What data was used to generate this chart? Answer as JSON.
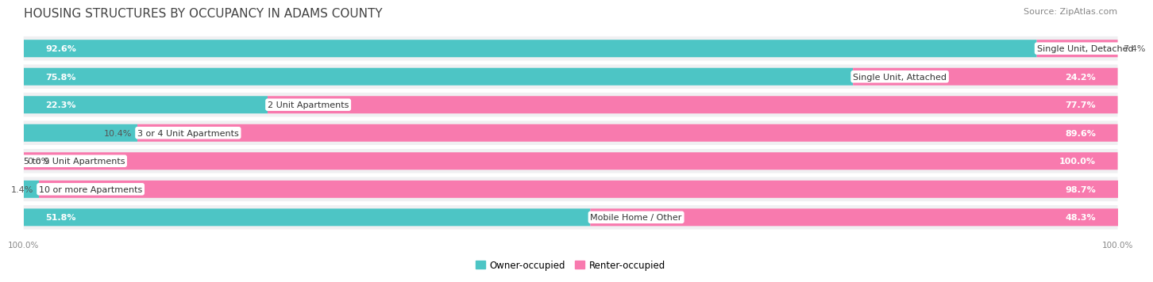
{
  "title": "HOUSING STRUCTURES BY OCCUPANCY IN ADAMS COUNTY",
  "source": "Source: ZipAtlas.com",
  "categories": [
    "Single Unit, Detached",
    "Single Unit, Attached",
    "2 Unit Apartments",
    "3 or 4 Unit Apartments",
    "5 to 9 Unit Apartments",
    "10 or more Apartments",
    "Mobile Home / Other"
  ],
  "owner_pct": [
    92.6,
    75.8,
    22.3,
    10.4,
    0.0,
    1.4,
    51.8
  ],
  "renter_pct": [
    7.4,
    24.2,
    77.7,
    89.6,
    100.0,
    98.7,
    48.3
  ],
  "owner_color": "#4DC5C5",
  "renter_color": "#F87AAE",
  "bg_color": "#FFFFFF",
  "row_bg_color": "#F0F0F2",
  "title_fontsize": 11,
  "source_fontsize": 8,
  "label_fontsize": 8,
  "category_fontsize": 8,
  "legend_fontsize": 8.5,
  "axis_label_fontsize": 7.5,
  "bar_height": 0.62
}
